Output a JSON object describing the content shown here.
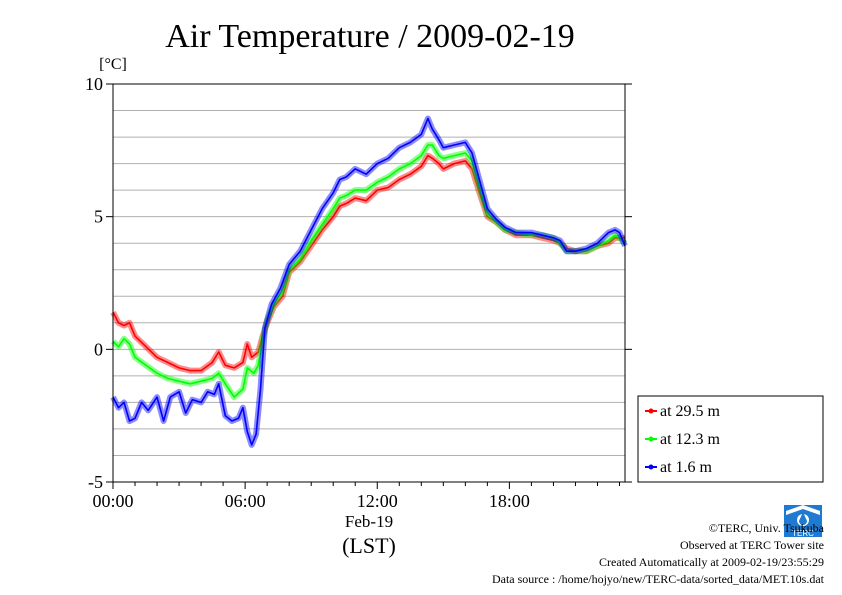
{
  "chart_data": {
    "type": "line",
    "title": "Air Temperature / 2009-02-19",
    "ylabel": "[°C]",
    "xlabel": "(LST)",
    "date_label": "Feb-19",
    "xlim": [
      0,
      23.25
    ],
    "ylim": [
      -5,
      10
    ],
    "x_ticks": [
      {
        "value": 0,
        "label": "00:00"
      },
      {
        "value": 6,
        "label": "06:00"
      },
      {
        "value": 12,
        "label": "12:00"
      },
      {
        "value": 18,
        "label": "18:00"
      }
    ],
    "y_ticks": [
      {
        "value": 10,
        "label": "10"
      },
      {
        "value": 5,
        "label": "5"
      },
      {
        "value": 0,
        "label": "0"
      },
      {
        "value": -5,
        "label": "-5"
      }
    ],
    "grid": true,
    "legend_position": "right, below plot",
    "series": [
      {
        "name": "at 29.5 m",
        "color": "#ff0000",
        "points": [
          [
            0,
            1.4
          ],
          [
            0.25,
            1.0
          ],
          [
            0.5,
            0.9
          ],
          [
            0.75,
            1.0
          ],
          [
            1.0,
            0.5
          ],
          [
            1.5,
            0.1
          ],
          [
            2,
            -0.3
          ],
          [
            2.5,
            -0.5
          ],
          [
            3,
            -0.7
          ],
          [
            3.5,
            -0.8
          ],
          [
            4,
            -0.8
          ],
          [
            4.5,
            -0.5
          ],
          [
            4.8,
            -0.1
          ],
          [
            5.1,
            -0.6
          ],
          [
            5.5,
            -0.7
          ],
          [
            5.9,
            -0.5
          ],
          [
            6.1,
            0.2
          ],
          [
            6.3,
            -0.3
          ],
          [
            6.6,
            -0.1
          ],
          [
            6.8,
            0.5
          ],
          [
            7,
            1.0
          ],
          [
            7.3,
            1.6
          ],
          [
            7.7,
            2.0
          ],
          [
            8,
            2.9
          ],
          [
            8.5,
            3.3
          ],
          [
            9,
            3.9
          ],
          [
            9.5,
            4.5
          ],
          [
            10,
            5.0
          ],
          [
            10.3,
            5.4
          ],
          [
            10.6,
            5.5
          ],
          [
            11,
            5.7
          ],
          [
            11.5,
            5.6
          ],
          [
            12,
            6.0
          ],
          [
            12.5,
            6.1
          ],
          [
            13,
            6.4
          ],
          [
            13.5,
            6.6
          ],
          [
            14,
            6.9
          ],
          [
            14.3,
            7.3
          ],
          [
            14.5,
            7.2
          ],
          [
            14.8,
            7.0
          ],
          [
            15,
            6.8
          ],
          [
            15.5,
            7.0
          ],
          [
            16,
            7.1
          ],
          [
            16.3,
            6.8
          ],
          [
            16.6,
            6.0
          ],
          [
            17,
            5.0
          ],
          [
            17.4,
            4.8
          ],
          [
            17.8,
            4.5
          ],
          [
            18.3,
            4.3
          ],
          [
            19,
            4.3
          ],
          [
            19.5,
            4.2
          ],
          [
            20,
            4.1
          ],
          [
            20.3,
            4.0
          ],
          [
            20.6,
            3.8
          ],
          [
            21,
            3.7
          ],
          [
            21.5,
            3.7
          ],
          [
            22,
            3.9
          ],
          [
            22.5,
            4.0
          ],
          [
            22.8,
            4.2
          ],
          [
            23,
            4.2
          ],
          [
            23.25,
            4.2
          ]
        ]
      },
      {
        "name": "at 12.3 m",
        "color": "#00ff00",
        "points": [
          [
            0,
            0.3
          ],
          [
            0.25,
            0.1
          ],
          [
            0.5,
            0.4
          ],
          [
            0.75,
            0.2
          ],
          [
            1,
            -0.3
          ],
          [
            1.5,
            -0.6
          ],
          [
            2,
            -0.9
          ],
          [
            2.5,
            -1.1
          ],
          [
            3,
            -1.2
          ],
          [
            3.5,
            -1.3
          ],
          [
            4,
            -1.2
          ],
          [
            4.5,
            -1.1
          ],
          [
            4.8,
            -0.9
          ],
          [
            5.1,
            -1.3
          ],
          [
            5.5,
            -1.8
          ],
          [
            5.9,
            -1.5
          ],
          [
            6.1,
            -0.7
          ],
          [
            6.4,
            -0.9
          ],
          [
            6.6,
            -0.6
          ],
          [
            6.8,
            0.4
          ],
          [
            7,
            1.1
          ],
          [
            7.3,
            1.7
          ],
          [
            7.7,
            2.2
          ],
          [
            8,
            3.0
          ],
          [
            8.5,
            3.4
          ],
          [
            9,
            4.1
          ],
          [
            9.5,
            4.7
          ],
          [
            10,
            5.3
          ],
          [
            10.3,
            5.7
          ],
          [
            10.6,
            5.8
          ],
          [
            11,
            6.0
          ],
          [
            11.5,
            6.0
          ],
          [
            12,
            6.3
          ],
          [
            12.5,
            6.5
          ],
          [
            13,
            6.8
          ],
          [
            13.5,
            7.0
          ],
          [
            14,
            7.3
          ],
          [
            14.3,
            7.7
          ],
          [
            14.5,
            7.7
          ],
          [
            14.8,
            7.3
          ],
          [
            15,
            7.2
          ],
          [
            15.5,
            7.3
          ],
          [
            16,
            7.4
          ],
          [
            16.3,
            7.1
          ],
          [
            16.6,
            6.2
          ],
          [
            17,
            5.1
          ],
          [
            17.4,
            4.8
          ],
          [
            17.8,
            4.5
          ],
          [
            18.3,
            4.4
          ],
          [
            19,
            4.3
          ],
          [
            19.5,
            4.3
          ],
          [
            20,
            4.2
          ],
          [
            20.3,
            4.0
          ],
          [
            20.6,
            3.7
          ],
          [
            21,
            3.7
          ],
          [
            21.5,
            3.7
          ],
          [
            22,
            3.9
          ],
          [
            22.5,
            4.1
          ],
          [
            22.8,
            4.3
          ],
          [
            23,
            4.2
          ],
          [
            23.25,
            4.0
          ]
        ]
      },
      {
        "name": "at 1.6 m",
        "color": "#0000ff",
        "points": [
          [
            0,
            -1.8
          ],
          [
            0.25,
            -2.2
          ],
          [
            0.5,
            -2.0
          ],
          [
            0.75,
            -2.7
          ],
          [
            1,
            -2.6
          ],
          [
            1.3,
            -2.0
          ],
          [
            1.6,
            -2.3
          ],
          [
            2,
            -1.8
          ],
          [
            2.3,
            -2.7
          ],
          [
            2.6,
            -1.8
          ],
          [
            3,
            -1.6
          ],
          [
            3.3,
            -2.4
          ],
          [
            3.6,
            -1.9
          ],
          [
            4,
            -2.0
          ],
          [
            4.3,
            -1.6
          ],
          [
            4.6,
            -1.7
          ],
          [
            4.8,
            -1.3
          ],
          [
            5.1,
            -2.5
          ],
          [
            5.4,
            -2.7
          ],
          [
            5.7,
            -2.6
          ],
          [
            5.9,
            -2.2
          ],
          [
            6.1,
            -3.1
          ],
          [
            6.3,
            -3.6
          ],
          [
            6.5,
            -3.2
          ],
          [
            6.7,
            -1.5
          ],
          [
            6.9,
            0.8
          ],
          [
            7.2,
            1.7
          ],
          [
            7.6,
            2.3
          ],
          [
            8,
            3.2
          ],
          [
            8.5,
            3.7
          ],
          [
            9,
            4.5
          ],
          [
            9.5,
            5.3
          ],
          [
            10,
            5.9
          ],
          [
            10.3,
            6.4
          ],
          [
            10.6,
            6.5
          ],
          [
            11,
            6.8
          ],
          [
            11.5,
            6.6
          ],
          [
            12,
            7.0
          ],
          [
            12.5,
            7.2
          ],
          [
            13,
            7.6
          ],
          [
            13.5,
            7.8
          ],
          [
            14,
            8.1
          ],
          [
            14.3,
            8.7
          ],
          [
            14.5,
            8.3
          ],
          [
            14.8,
            7.9
          ],
          [
            15,
            7.6
          ],
          [
            15.5,
            7.7
          ],
          [
            16,
            7.8
          ],
          [
            16.3,
            7.4
          ],
          [
            16.6,
            6.5
          ],
          [
            17,
            5.3
          ],
          [
            17.4,
            4.9
          ],
          [
            17.8,
            4.6
          ],
          [
            18.3,
            4.4
          ],
          [
            19,
            4.4
          ],
          [
            19.5,
            4.3
          ],
          [
            20,
            4.2
          ],
          [
            20.3,
            4.1
          ],
          [
            20.6,
            3.7
          ],
          [
            21,
            3.7
          ],
          [
            21.5,
            3.8
          ],
          [
            22,
            4.0
          ],
          [
            22.5,
            4.4
          ],
          [
            22.8,
            4.5
          ],
          [
            23,
            4.4
          ],
          [
            23.25,
            3.9
          ]
        ]
      }
    ]
  },
  "credits": {
    "copyright": "©TERC, Univ. Tsukuba",
    "site": "Observed at TERC Tower site",
    "created": "Created Automatically at 2009-02-19/23:55:29",
    "source": "Data source : /home/hojyo/new/TERC-data/sorted_data/MET.10s.dat",
    "logo_text": "TERC"
  }
}
